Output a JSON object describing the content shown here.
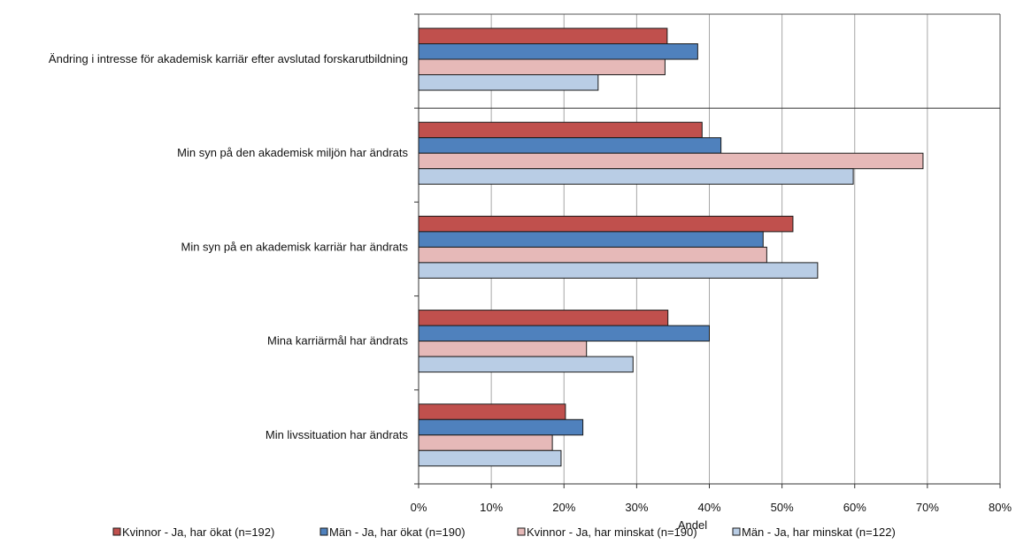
{
  "chart_data": {
    "type": "bar",
    "orientation": "horizontal",
    "categories": [
      "Ändring i intresse för akademisk karriär efter avslutad forskarutbildning",
      "Min syn på den akademisk miljön har ändrats",
      "Min syn på en akademisk karriär har ändrats",
      "Mina karriärmål har ändrats",
      "Min livssituation har ändrats"
    ],
    "series": [
      {
        "name": "Kvinnor - Ja, har ökat (n=192)",
        "color": "#c0504d",
        "values": [
          34.2,
          39.0,
          51.5,
          34.3,
          20.2
        ]
      },
      {
        "name": "Män - Ja, har ökat (n=190)",
        "color": "#4f81bd",
        "values": [
          38.4,
          41.6,
          47.4,
          40.0,
          22.6
        ]
      },
      {
        "name": "Kvinnor - Ja, har minskat (n=190)",
        "color": "#e6b9b8",
        "values": [
          33.9,
          69.4,
          47.9,
          23.1,
          18.4
        ]
      },
      {
        "name": "Män - Ja, har minskat (n=122)",
        "color": "#b9cde5",
        "values": [
          24.7,
          59.8,
          54.9,
          29.5,
          19.6
        ]
      }
    ],
    "xlabel": "Andel",
    "xticks": [
      "0%",
      "10%",
      "20%",
      "30%",
      "40%",
      "50%",
      "60%",
      "70%",
      "80%"
    ],
    "xlim": [
      0,
      80
    ],
    "grid": "vertical",
    "legend_position": "bottom"
  }
}
